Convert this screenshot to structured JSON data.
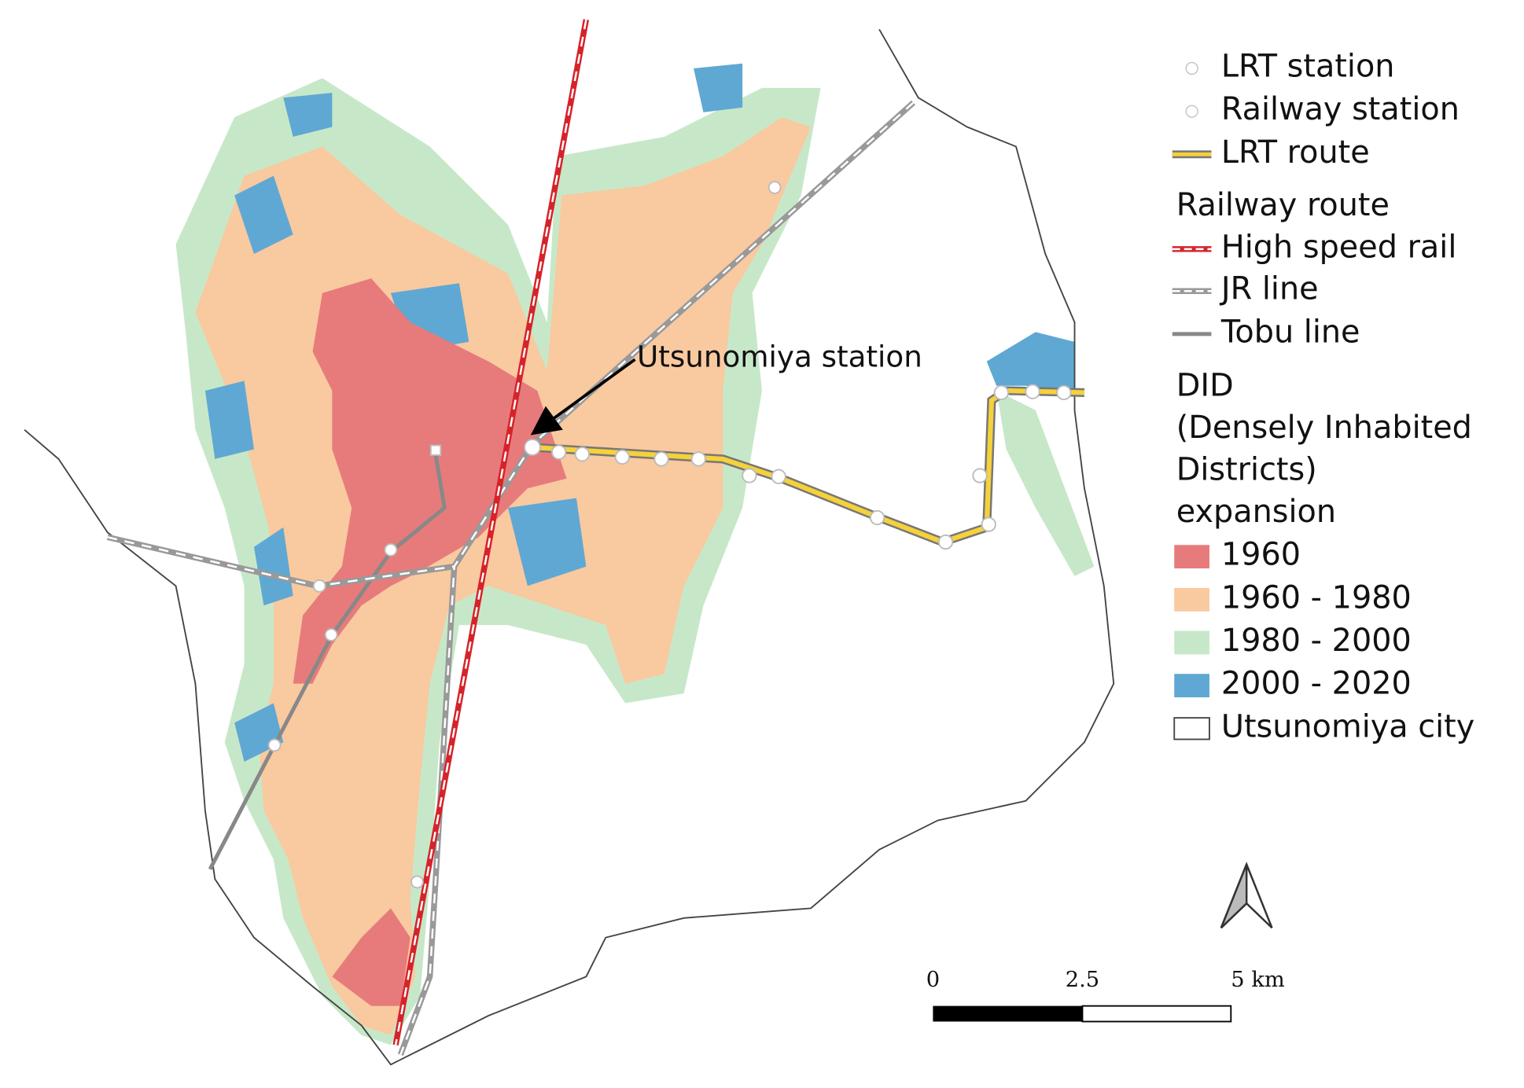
{
  "annotation": "Utsunomiya station",
  "legend": {
    "lrt_station": "LRT station",
    "railway_station": "Railway station",
    "lrt_route": "LRT route",
    "railway_route": "Railway route",
    "high_speed_rail": "High speed rail",
    "jr_line": "JR line",
    "tobu_line": "Tobu line",
    "did_title": [
      "DID",
      "(Densely Inhabited",
      " Districts)",
      "expansion"
    ],
    "did_classes": [
      {
        "label": "1960",
        "color": "#e77b7b"
      },
      {
        "label": "1960 - 1980",
        "color": "#f9c9a0"
      },
      {
        "label": "1980 - 2000",
        "color": "#c7e8c8"
      },
      {
        "label": "2000 - 2020",
        "color": "#5fa8d3"
      }
    ],
    "city": "Utsunomiya city"
  },
  "scale_bar": {
    "labels": [
      "0",
      "2.5",
      "5 km"
    ]
  }
}
